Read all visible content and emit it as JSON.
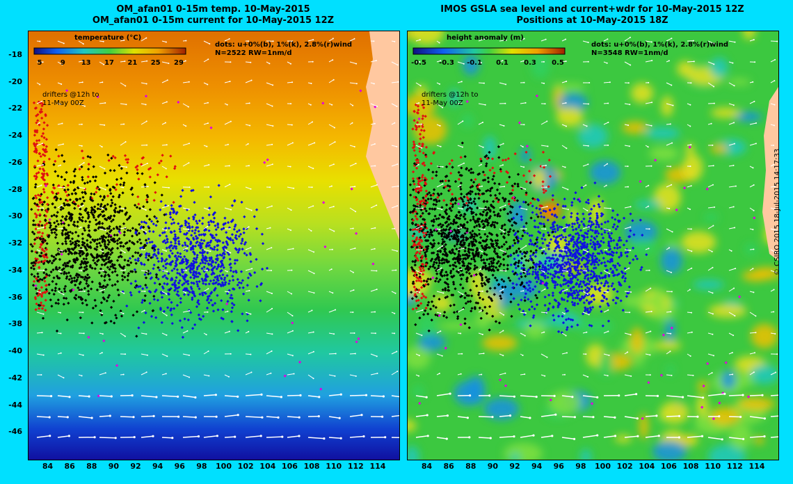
{
  "left_panel": {
    "title_line1": "OM_afan01 0-15m temp. 10-May-2015",
    "title_line2": "OM_afan01 0-15m current for 10-May-2015 12Z",
    "colorbar_title": "temperature (°C)",
    "colorbar_ticks": [
      "5",
      "9",
      "13",
      "17",
      "21",
      "25",
      "29"
    ],
    "dots_legend": "dots: u+0%(b), 1%(k), 2.8%(r)wind",
    "count_label": "N=2522 RW=1nm/d",
    "drifter_note_line1": "drifters @12h to",
    "drifter_note_line2": "11-May 00Z"
  },
  "right_panel": {
    "title_line1": "IMOS GSLA sea level and current+wdr for 10-May-2015 12Z",
    "title_line2": "Positions at 10-May-2015 18Z",
    "colorbar_title": "height anomaly (m)",
    "colorbar_ticks": [
      "-0.5",
      "-0.3",
      "-0.1",
      "0.1",
      "0.3",
      "0.5"
    ],
    "dots_legend": "dots: u+0%(b), 1%(k), 2.8%(r)wind",
    "count_label": "N=3548 RW=1nm/d",
    "drifter_note_line1": "drifters @12h to",
    "drifter_note_line2": "11-May 00Z"
  },
  "axes": {
    "lon_ticks": [
      "84",
      "86",
      "88",
      "90",
      "92",
      "94",
      "96",
      "98",
      "100",
      "102",
      "104",
      "106",
      "108",
      "110",
      "112",
      "114"
    ],
    "lat_ticks": [
      "-18",
      "-20",
      "-22",
      "-24",
      "-26",
      "-28",
      "-30",
      "-32",
      "-34",
      "-36",
      "-38",
      "-40",
      "-42",
      "-44",
      "-46"
    ],
    "lon_range": [
      82.2,
      115.9
    ],
    "lat_range": [
      -48.0,
      -16.2
    ]
  },
  "copyright": "© CSIRO 2015   18-Jul-2015 14:17:33",
  "colors": {
    "background": "#00e0ff",
    "land": "#ffc8a0",
    "drifter_blue": "#1010e0",
    "drifter_black": "#000000",
    "drifter_red": "#e01010",
    "drifter_magenta": "#e000e0",
    "vector": "#ffffff"
  }
}
